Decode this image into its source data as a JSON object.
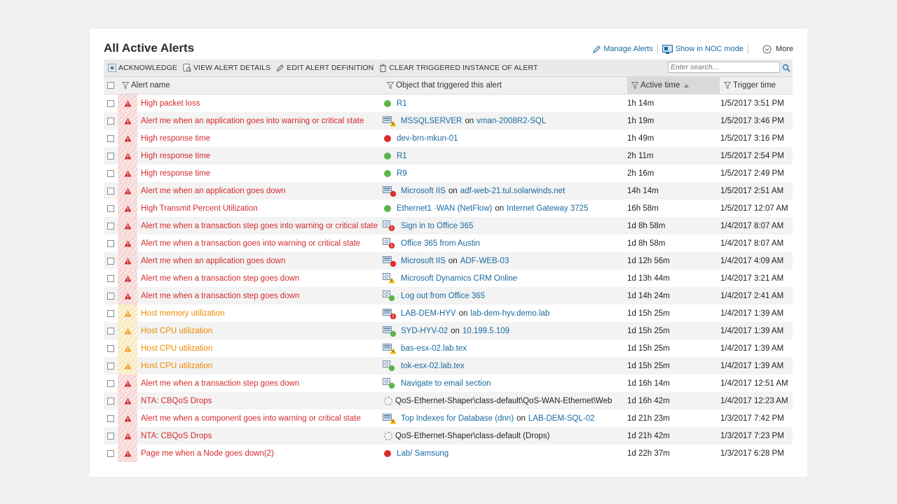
{
  "page": {
    "title": "All Active Alerts",
    "manage_alerts": "Manage Alerts",
    "show_noc": "Show in NOC mode",
    "more": "More"
  },
  "toolbar": {
    "acknowledge": "ACKNOWLEDGE",
    "view_details": "VIEW ALERT DETAILS",
    "edit_definition": "EDIT ALERT DEFINITION",
    "clear_instance": "CLEAR TRIGGERED INSTANCE OF ALERT",
    "search_placeholder": "Enter search..."
  },
  "columns": {
    "alert_name": "Alert name",
    "object": "Object that triggered this alert",
    "active_time": "Active time",
    "trigger_time": "Trigger time"
  },
  "colors": {
    "critical": "#d42b2b",
    "warning": "#ee8a00",
    "link": "#1a6aa0",
    "up": "#5cb44b",
    "down": "#d9302c"
  },
  "rows": [
    {
      "severity": "critical",
      "name": "High packet loss",
      "icon": "green-dot",
      "obj": "R1",
      "on": "",
      "obj2": "",
      "active": "1h 14m",
      "trigger": "1/5/2017 3:51 PM"
    },
    {
      "severity": "critical",
      "name": "Alert me when an application goes into warning or critical state",
      "icon": "server-warning",
      "obj": "MSSQLSERVER",
      "on": "on",
      "obj2": "vman-2008R2-SQL",
      "active": "1h 19m",
      "trigger": "1/5/2017 3:46 PM"
    },
    {
      "severity": "critical",
      "name": "High response time",
      "icon": "red-dot",
      "obj": "dev-brn-mkun-01",
      "on": "",
      "obj2": "",
      "active": "1h 49m",
      "trigger": "1/5/2017 3:16 PM"
    },
    {
      "severity": "critical",
      "name": "High response time",
      "icon": "green-dot",
      "obj": "R1",
      "on": "",
      "obj2": "",
      "active": "2h 11m",
      "trigger": "1/5/2017 2:54 PM"
    },
    {
      "severity": "critical",
      "name": "High response time",
      "icon": "green-dot",
      "obj": "R9",
      "on": "",
      "obj2": "",
      "active": "2h 16m",
      "trigger": "1/5/2017 2:49 PM"
    },
    {
      "severity": "critical",
      "name": "Alert me when an application goes down",
      "icon": "server-down",
      "obj": "Microsoft IIS",
      "on": "on",
      "obj2": "adf-web-21.tul.solarwinds.net",
      "active": "14h 14m",
      "trigger": "1/5/2017 2:51 AM"
    },
    {
      "severity": "critical",
      "name": "High Transmit Percent Utilization",
      "icon": "green-dot",
      "obj": "Ethernet1 ·WAN (NetFlow)",
      "on": "on",
      "obj2": "Internet Gateway 3725",
      "active": "16h 58m",
      "trigger": "1/5/2017 12:07 AM"
    },
    {
      "severity": "critical",
      "name": "Alert me when a transaction step goes into warning or critical state",
      "icon": "transaction-critical",
      "obj": "Sign in to Office 365",
      "on": "",
      "obj2": "",
      "active": "1d 8h 58m",
      "trigger": "1/4/2017 8:07 AM"
    },
    {
      "severity": "critical",
      "name": "Alert me when a transaction goes into warning or critical state",
      "icon": "transaction-critical",
      "obj": "Office 365 from Austin",
      "on": "",
      "obj2": "",
      "active": "1d 8h 58m",
      "trigger": "1/4/2017 8:07 AM"
    },
    {
      "severity": "critical",
      "name": "Alert me when an application goes down",
      "icon": "server-down",
      "obj": "Microsoft IIS",
      "on": "on",
      "obj2": "ADF-WEB-03",
      "active": "1d 12h 56m",
      "trigger": "1/4/2017 4:09 AM"
    },
    {
      "severity": "critical",
      "name": "Alert me when a transaction step goes down",
      "icon": "transaction-warning",
      "obj": "Microsoft Dynamics CRM Online",
      "on": "",
      "obj2": "",
      "active": "1d 13h 44m",
      "trigger": "1/4/2017 3:21 AM"
    },
    {
      "severity": "critical",
      "name": "Alert me when a transaction step goes down",
      "icon": "transaction-up",
      "obj": "Log out from Office 365",
      "on": "",
      "obj2": "",
      "active": "1d 14h 24m",
      "trigger": "1/4/2017 2:41 AM"
    },
    {
      "severity": "warning",
      "name": "Host memory utilization",
      "icon": "host-critical",
      "obj": "LAB-DEM-HYV",
      "on": "on",
      "obj2": "lab-dem-hyv.demo.lab",
      "active": "1d 15h 25m",
      "trigger": "1/4/2017 1:39 AM"
    },
    {
      "severity": "warning",
      "name": "Host CPU utilization",
      "icon": "host-up",
      "obj": "SYD-HYV-02",
      "on": "on",
      "obj2": "10.199.5.109",
      "active": "1d 15h 25m",
      "trigger": "1/4/2017 1:39 AM"
    },
    {
      "severity": "warning",
      "name": "Host CPU utilization",
      "icon": "host-warning",
      "obj": "bas-esx-02.lab.tex",
      "on": "",
      "obj2": "",
      "active": "1d 15h 25m",
      "trigger": "1/4/2017 1:39 AM"
    },
    {
      "severity": "warning",
      "name": "Host CPU utilization",
      "icon": "host-up-small",
      "obj": "tok-esx-02.lab.tex",
      "on": "",
      "obj2": "",
      "active": "1d 15h 25m",
      "trigger": "1/4/2017 1:39 AM"
    },
    {
      "severity": "critical",
      "name": "Alert me when a transaction step goes down",
      "icon": "transaction-up",
      "obj": "Navigate to email section",
      "on": "",
      "obj2": "",
      "active": "1d 16h 14m",
      "trigger": "1/4/2017 12:51 AM"
    },
    {
      "severity": "critical",
      "name": "NTA: CBQoS Drops",
      "icon": "unknown",
      "obj": "QoS-Ethernet-Shaper\\class-default\\QoS-WAN-Ethernet\\Web",
      "on": "",
      "obj2": "",
      "active": "1d 16h 42m",
      "trigger": "1/4/2017 12:23 AM"
    },
    {
      "severity": "critical",
      "name": "Alert me when a component goes into warning or critical state",
      "icon": "db-warning",
      "obj": "Top Indexes for Database (dnn)",
      "on": "on",
      "obj2": "LAB-DEM-SQL-02",
      "active": "1d 21h 23m",
      "trigger": "1/3/2017 7:42 PM"
    },
    {
      "severity": "critical",
      "name": "NTA: CBQoS Drops",
      "icon": "unknown",
      "obj": "QoS-Ethernet-Shaper\\class-default (Drops)",
      "on": "",
      "obj2": "",
      "active": "1d 21h 42m",
      "trigger": "1/3/2017 7:23 PM"
    },
    {
      "severity": "critical",
      "name": "Page me when a Node goes down(2)",
      "icon": "red-dot",
      "obj": "Lab/ Samsung",
      "on": "",
      "obj2": "",
      "active": "1d 22h 37m",
      "trigger": "1/3/2017 6:28 PM"
    }
  ]
}
